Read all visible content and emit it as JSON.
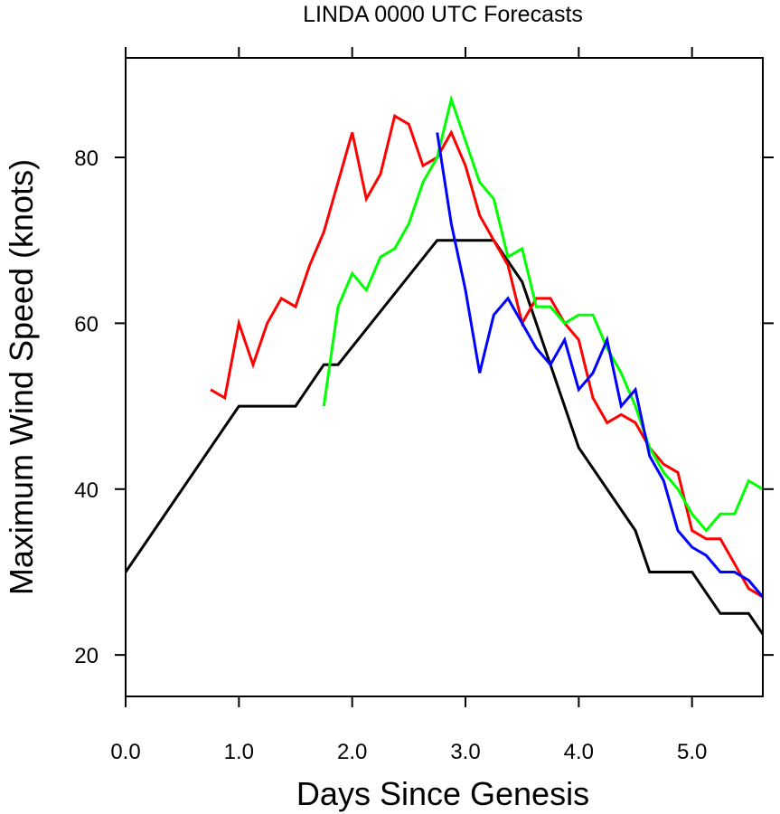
{
  "chart_data": {
    "type": "line",
    "title": "LINDA 0000 UTC Forecasts",
    "xlabel": "Days Since Genesis",
    "ylabel": "Maximum Wind Speed (knots)",
    "xlim": [
      0,
      5.625
    ],
    "ylim": [
      15,
      92
    ],
    "xticks": [
      0,
      1,
      2,
      3,
      4,
      5
    ],
    "xtick_labels": [
      "0.0",
      "1.0",
      "2.0",
      "3.0",
      "4.0",
      "5.0"
    ],
    "yticks": [
      20,
      40,
      60,
      80
    ],
    "ytick_labels": [
      "20",
      "40",
      "60",
      "80"
    ],
    "grid": false,
    "legend": "none",
    "series": [
      {
        "color": "#000000",
        "x": [
          0,
          1.0,
          1.5,
          1.75,
          1.875,
          2.75,
          3.25,
          3.5,
          4.0,
          4.5,
          4.625,
          5.0,
          5.25,
          5.5,
          5.625
        ],
        "values": [
          30,
          50,
          50,
          55,
          55,
          70,
          70,
          65,
          45,
          35,
          30,
          30,
          25,
          25,
          22.5
        ]
      },
      {
        "color": "#ff0000",
        "x": [
          0.75,
          0.875,
          1.0,
          1.125,
          1.25,
          1.375,
          1.5,
          1.625,
          1.75,
          1.875,
          2.0,
          2.125,
          2.25,
          2.375,
          2.5,
          2.625,
          2.75,
          2.875,
          3.0,
          3.125,
          3.25,
          3.375,
          3.5,
          3.625,
          3.75,
          3.875,
          4.0,
          4.125,
          4.25,
          4.375,
          4.5,
          4.625,
          4.75,
          4.875,
          5.0,
          5.125,
          5.25,
          5.375,
          5.5,
          5.625
        ],
        "values": [
          52,
          51,
          60,
          55,
          60,
          63,
          62,
          67,
          71,
          77,
          83,
          75,
          78,
          85,
          84,
          79,
          80,
          83,
          79,
          73,
          70,
          67,
          60,
          63,
          63,
          60,
          58,
          51,
          48,
          49,
          48,
          45,
          43,
          42,
          35,
          34,
          34,
          31,
          28,
          27
        ]
      },
      {
        "color": "#00ff00",
        "x": [
          1.75,
          1.875,
          2.0,
          2.125,
          2.25,
          2.375,
          2.5,
          2.625,
          2.75,
          2.875,
          3.0,
          3.125,
          3.25,
          3.375,
          3.5,
          3.625,
          3.75,
          3.875,
          4.0,
          4.125,
          4.25,
          4.375,
          4.5,
          4.625,
          4.75,
          4.875,
          5.0,
          5.125,
          5.25,
          5.375,
          5.5,
          5.625
        ],
        "values": [
          50,
          62,
          66,
          64,
          68,
          69,
          72,
          77,
          80,
          87,
          82,
          77,
          75,
          68,
          69,
          62,
          62,
          60,
          61,
          61,
          57,
          54,
          50,
          45,
          42,
          40,
          37,
          35,
          37,
          37,
          41,
          40
        ]
      },
      {
        "color": "#0000ff",
        "x": [
          2.75,
          2.875,
          3.0,
          3.125,
          3.25,
          3.375,
          3.5,
          3.625,
          3.75,
          3.875,
          4.0,
          4.125,
          4.25,
          4.375,
          4.5,
          4.625,
          4.75,
          4.875,
          5.0,
          5.125,
          5.25,
          5.375,
          5.5,
          5.625
        ],
        "values": [
          83,
          72,
          64,
          54,
          61,
          63,
          60,
          57,
          55,
          58,
          52,
          54,
          58,
          50,
          52,
          44,
          41,
          35,
          33,
          32,
          30,
          30,
          29,
          27
        ]
      }
    ]
  }
}
